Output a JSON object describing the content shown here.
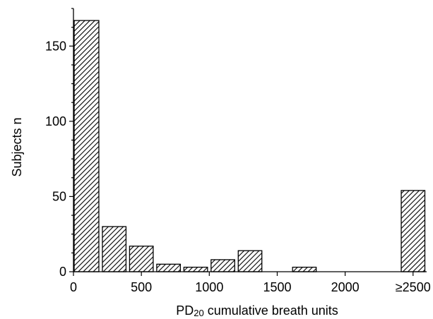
{
  "chart_data": {
    "type": "bar",
    "title": "",
    "xlabel": {
      "prefix": "PD",
      "subscript": "20",
      "suffix": " cumulative breath units"
    },
    "ylabel": "Subjects  n",
    "x_tick_labels": [
      "0",
      "500",
      "1000",
      "1500",
      "2000",
      "≥2500"
    ],
    "x_tick_values": [
      0,
      500,
      1000,
      1500,
      2000,
      2500
    ],
    "xlim": [
      0,
      2600
    ],
    "y_tick_labels": [
      "0",
      "50",
      "100",
      "150"
    ],
    "y_tick_values": [
      0,
      50,
      100,
      150
    ],
    "ylim": [
      0,
      175
    ],
    "bin_width": 200,
    "bins": [
      {
        "x_start": 0,
        "x_end": 200,
        "value": 167
      },
      {
        "x_start": 200,
        "x_end": 400,
        "value": 30
      },
      {
        "x_start": 400,
        "x_end": 600,
        "value": 17
      },
      {
        "x_start": 600,
        "x_end": 800,
        "value": 5
      },
      {
        "x_start": 800,
        "x_end": 1000,
        "value": 3
      },
      {
        "x_start": 1000,
        "x_end": 1200,
        "value": 8
      },
      {
        "x_start": 1200,
        "x_end": 1400,
        "value": 14
      },
      {
        "x_start": 1400,
        "x_end": 1600,
        "value": 0
      },
      {
        "x_start": 1600,
        "x_end": 1800,
        "value": 3
      },
      {
        "x_start": 1800,
        "x_end": 2000,
        "value": 0
      },
      {
        "x_start": 2000,
        "x_end": 2200,
        "value": 0
      },
      {
        "x_start": 2200,
        "x_end": 2400,
        "value": 0
      },
      {
        "x_start": 2400,
        "x_end": 2600,
        "value": 54
      }
    ],
    "bar_fill": "diagonal-hatch",
    "colors": {
      "bar_stroke": "#000000",
      "hatch": "#000000",
      "background": "#ffffff"
    },
    "grid": false,
    "legend": "none"
  }
}
